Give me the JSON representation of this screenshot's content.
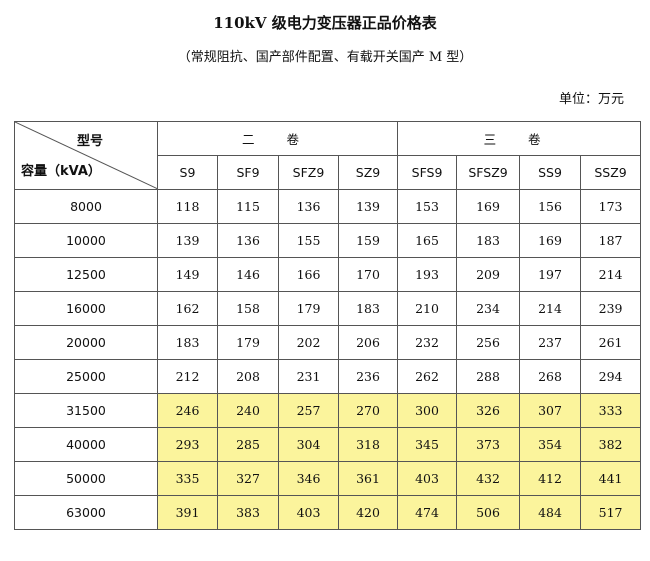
{
  "title": "110kV 级电力变压器正品价格表",
  "subtitle": "（常规阻抗、国产部件配置、有载开关国产 M 型）",
  "unit": "单位：万元",
  "header": {
    "corner_top": "型号",
    "corner_bottom": "容量（kVA）",
    "group_left": "二 卷",
    "group_right": "三 卷",
    "models": [
      "S9",
      "SF9",
      "SFZ9",
      "SZ9",
      "SFS9",
      "SFSZ9",
      "SS9",
      "SSZ9"
    ]
  },
  "highlight_color": "#fbf49c",
  "rows": [
    {
      "capacity": "8000",
      "highlight": false,
      "values": [
        "118",
        "115",
        "136",
        "139",
        "153",
        "169",
        "156",
        "173"
      ]
    },
    {
      "capacity": "10000",
      "highlight": false,
      "values": [
        "139",
        "136",
        "155",
        "159",
        "165",
        "183",
        "169",
        "187"
      ]
    },
    {
      "capacity": "12500",
      "highlight": false,
      "values": [
        "149",
        "146",
        "166",
        "170",
        "193",
        "209",
        "197",
        "214"
      ]
    },
    {
      "capacity": "16000",
      "highlight": false,
      "values": [
        "162",
        "158",
        "179",
        "183",
        "210",
        "234",
        "214",
        "239"
      ]
    },
    {
      "capacity": "20000",
      "highlight": false,
      "values": [
        "183",
        "179",
        "202",
        "206",
        "232",
        "256",
        "237",
        "261"
      ]
    },
    {
      "capacity": "25000",
      "highlight": false,
      "values": [
        "212",
        "208",
        "231",
        "236",
        "262",
        "288",
        "268",
        "294"
      ]
    },
    {
      "capacity": "31500",
      "highlight": true,
      "values": [
        "246",
        "240",
        "257",
        "270",
        "300",
        "326",
        "307",
        "333"
      ]
    },
    {
      "capacity": "40000",
      "highlight": true,
      "values": [
        "293",
        "285",
        "304",
        "318",
        "345",
        "373",
        "354",
        "382"
      ]
    },
    {
      "capacity": "50000",
      "highlight": true,
      "values": [
        "335",
        "327",
        "346",
        "361",
        "403",
        "432",
        "412",
        "441"
      ]
    },
    {
      "capacity": "63000",
      "highlight": true,
      "values": [
        "391",
        "383",
        "403",
        "420",
        "474",
        "506",
        "484",
        "517"
      ]
    }
  ]
}
